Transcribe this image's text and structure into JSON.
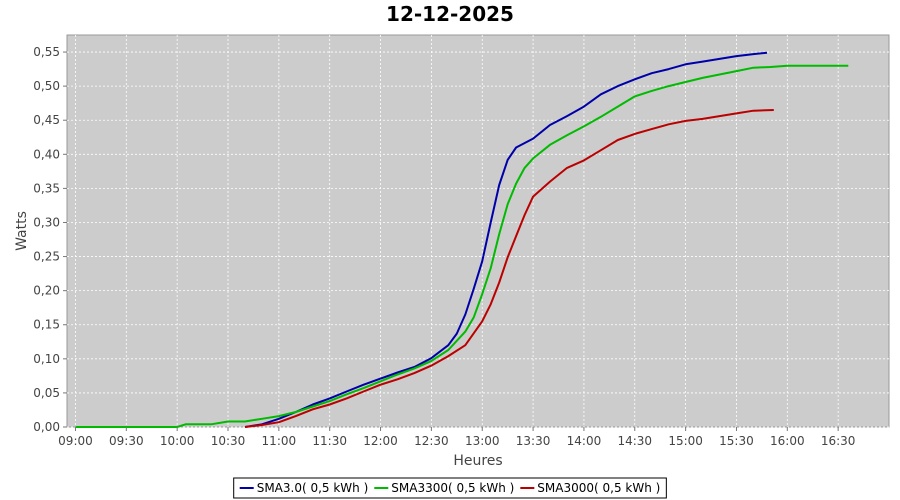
{
  "chart_data": {
    "type": "line",
    "title": "12-12-2025",
    "xlabel": "Heures",
    "ylabel": "Watts",
    "xlim": [
      "08:55",
      "17:00"
    ],
    "ylim": [
      0,
      0.575
    ],
    "grid": true,
    "legend_position": "bottom",
    "x_ticks": [
      "09:00",
      "09:30",
      "10:00",
      "10:30",
      "11:00",
      "11:30",
      "12:00",
      "12:30",
      "13:00",
      "13:30",
      "14:00",
      "14:30",
      "15:00",
      "15:30",
      "16:00",
      "16:30"
    ],
    "y_ticks": [
      "0,00",
      "0,05",
      "0,10",
      "0,15",
      "0,20",
      "0,25",
      "0,30",
      "0,35",
      "0,40",
      "0,45",
      "0,50",
      "0,55"
    ],
    "y_tick_values": [
      0,
      0.05,
      0.1,
      0.15,
      0.2,
      0.25,
      0.3,
      0.35,
      0.4,
      0.45,
      0.5,
      0.55
    ],
    "colors": {
      "plot_background": "#cccccc",
      "grid": "#ffffff"
    },
    "series": [
      {
        "name": "SMA3.0( 0,5 kWh )",
        "color": "#0000aa",
        "points": [
          [
            "10:40",
            0.0
          ],
          [
            "10:50",
            0.004
          ],
          [
            "11:00",
            0.012
          ],
          [
            "11:10",
            0.022
          ],
          [
            "11:20",
            0.033
          ],
          [
            "11:30",
            0.042
          ],
          [
            "11:40",
            0.052
          ],
          [
            "11:50",
            0.062
          ],
          [
            "12:00",
            0.071
          ],
          [
            "12:10",
            0.08
          ],
          [
            "12:20",
            0.088
          ],
          [
            "12:30",
            0.101
          ],
          [
            "12:40",
            0.12
          ],
          [
            "12:45",
            0.137
          ],
          [
            "12:50",
            0.165
          ],
          [
            "12:55",
            0.203
          ],
          [
            "13:00",
            0.243
          ],
          [
            "13:05",
            0.3
          ],
          [
            "13:10",
            0.355
          ],
          [
            "13:15",
            0.392
          ],
          [
            "13:20",
            0.41
          ],
          [
            "13:30",
            0.423
          ],
          [
            "13:40",
            0.443
          ],
          [
            "13:50",
            0.456
          ],
          [
            "14:00",
            0.47
          ],
          [
            "14:10",
            0.488
          ],
          [
            "14:20",
            0.5
          ],
          [
            "14:30",
            0.51
          ],
          [
            "14:40",
            0.519
          ],
          [
            "14:50",
            0.525
          ],
          [
            "15:00",
            0.532
          ],
          [
            "15:10",
            0.536
          ],
          [
            "15:20",
            0.54
          ],
          [
            "15:30",
            0.544
          ],
          [
            "15:40",
            0.547
          ],
          [
            "15:48",
            0.549
          ]
        ]
      },
      {
        "name": "SMA3300( 0,5 kWh )",
        "color": "#00bb00",
        "points": [
          [
            "09:00",
            0.0
          ],
          [
            "09:30",
            0.0
          ],
          [
            "10:00",
            0.0
          ],
          [
            "10:05",
            0.004
          ],
          [
            "10:15",
            0.004
          ],
          [
            "10:20",
            0.004
          ],
          [
            "10:30",
            0.008
          ],
          [
            "10:40",
            0.008
          ],
          [
            "10:50",
            0.012
          ],
          [
            "11:00",
            0.016
          ],
          [
            "11:10",
            0.022
          ],
          [
            "11:20",
            0.03
          ],
          [
            "11:30",
            0.038
          ],
          [
            "11:40",
            0.048
          ],
          [
            "11:50",
            0.057
          ],
          [
            "12:00",
            0.067
          ],
          [
            "12:10",
            0.077
          ],
          [
            "12:20",
            0.086
          ],
          [
            "12:30",
            0.097
          ],
          [
            "12:40",
            0.113
          ],
          [
            "12:50",
            0.14
          ],
          [
            "12:55",
            0.161
          ],
          [
            "13:00",
            0.195
          ],
          [
            "13:05",
            0.233
          ],
          [
            "13:10",
            0.283
          ],
          [
            "13:15",
            0.327
          ],
          [
            "13:20",
            0.357
          ],
          [
            "13:25",
            0.38
          ],
          [
            "13:30",
            0.394
          ],
          [
            "13:40",
            0.414
          ],
          [
            "13:50",
            0.428
          ],
          [
            "14:00",
            0.441
          ],
          [
            "14:10",
            0.455
          ],
          [
            "14:20",
            0.47
          ],
          [
            "14:30",
            0.485
          ],
          [
            "14:40",
            0.493
          ],
          [
            "14:50",
            0.5
          ],
          [
            "15:00",
            0.506
          ],
          [
            "15:10",
            0.512
          ],
          [
            "15:20",
            0.517
          ],
          [
            "15:30",
            0.522
          ],
          [
            "15:40",
            0.527
          ],
          [
            "15:50",
            0.528
          ],
          [
            "16:00",
            0.53
          ],
          [
            "16:30",
            0.53
          ],
          [
            "16:36",
            0.53
          ]
        ]
      },
      {
        "name": "SMA3000( 0,5 kWh )",
        "color": "#bb0000",
        "points": [
          [
            "10:40",
            0.0
          ],
          [
            "10:50",
            0.003
          ],
          [
            "11:00",
            0.007
          ],
          [
            "11:10",
            0.016
          ],
          [
            "11:20",
            0.026
          ],
          [
            "11:30",
            0.033
          ],
          [
            "11:40",
            0.042
          ],
          [
            "11:50",
            0.052
          ],
          [
            "12:00",
            0.062
          ],
          [
            "12:10",
            0.07
          ],
          [
            "12:20",
            0.079
          ],
          [
            "12:30",
            0.09
          ],
          [
            "12:40",
            0.104
          ],
          [
            "12:50",
            0.12
          ],
          [
            "13:00",
            0.155
          ],
          [
            "13:05",
            0.18
          ],
          [
            "13:10",
            0.212
          ],
          [
            "13:15",
            0.249
          ],
          [
            "13:20",
            0.28
          ],
          [
            "13:25",
            0.311
          ],
          [
            "13:30",
            0.338
          ],
          [
            "13:40",
            0.36
          ],
          [
            "13:50",
            0.38
          ],
          [
            "14:00",
            0.391
          ],
          [
            "14:10",
            0.406
          ],
          [
            "14:20",
            0.421
          ],
          [
            "14:30",
            0.43
          ],
          [
            "14:40",
            0.437
          ],
          [
            "14:50",
            0.444
          ],
          [
            "15:00",
            0.449
          ],
          [
            "15:10",
            0.452
          ],
          [
            "15:20",
            0.456
          ],
          [
            "15:30",
            0.46
          ],
          [
            "15:40",
            0.464
          ],
          [
            "15:52",
            0.465
          ]
        ]
      }
    ]
  }
}
